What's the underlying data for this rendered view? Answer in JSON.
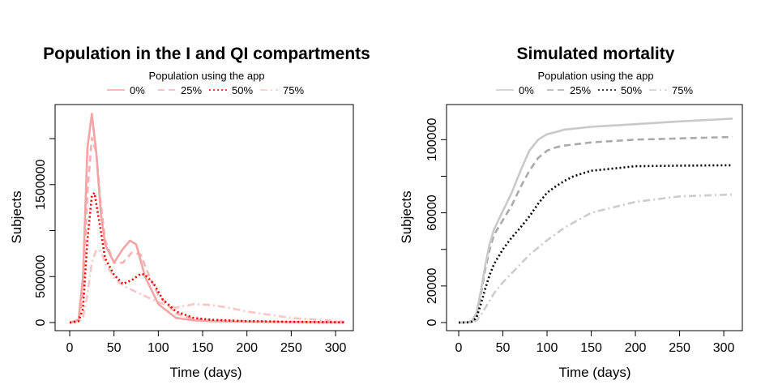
{
  "chart_data": [
    {
      "type": "line",
      "title": "Population in the I and QI compartments",
      "legend_title": "Population using the app",
      "legend_position": "top",
      "xlabel": "Time (days)",
      "ylabel": "Subjects",
      "xlim": [
        0,
        310
      ],
      "ylim": [
        0,
        2300000
      ],
      "x_ticks": [
        0,
        50,
        100,
        150,
        200,
        250,
        300
      ],
      "x_tick_labels": [
        "0",
        "50",
        "100",
        "150",
        "200",
        "250",
        "300"
      ],
      "y_ticks": [
        0,
        500000,
        1000000,
        1500000,
        2000000
      ],
      "y_tick_labels": [
        "0",
        "500000",
        "",
        "1500000",
        ""
      ],
      "grid": false,
      "series": [
        {
          "name": "0%",
          "color": "#f3a4a4",
          "dash": "solid",
          "x": [
            0,
            10,
            15,
            20,
            25,
            30,
            35,
            40,
            50,
            60,
            68,
            75,
            85,
            100,
            120,
            140,
            160,
            200,
            250,
            310
          ],
          "y": [
            0,
            30000,
            500000,
            1900000,
            2270000,
            1850000,
            1200000,
            850000,
            650000,
            800000,
            890000,
            850000,
            500000,
            200000,
            50000,
            25000,
            15000,
            10000,
            5000,
            2000
          ]
        },
        {
          "name": "25%",
          "color": "#f7b3b3",
          "dash": "dashed",
          "x": [
            0,
            10,
            15,
            20,
            25,
            30,
            35,
            40,
            50,
            60,
            70,
            80,
            90,
            100,
            120,
            140,
            160,
            200,
            250,
            310
          ],
          "y": [
            0,
            20000,
            300000,
            1400000,
            2010000,
            1850000,
            1300000,
            900000,
            650000,
            650000,
            760000,
            740000,
            500000,
            300000,
            100000,
            40000,
            25000,
            15000,
            8000,
            3000
          ]
        },
        {
          "name": "50%",
          "color": "#ee0000",
          "dash": "dotted",
          "x": [
            0,
            10,
            15,
            20,
            25,
            28,
            35,
            40,
            50,
            60,
            70,
            80,
            85,
            95,
            105,
            120,
            140,
            160,
            200,
            250,
            310
          ],
          "y": [
            0,
            15000,
            150000,
            900000,
            1380000,
            1410000,
            1000000,
            700000,
            520000,
            420000,
            460000,
            530000,
            520000,
            420000,
            250000,
            120000,
            50000,
            30000,
            15000,
            8000,
            3000
          ]
        },
        {
          "name": "75%",
          "color": "#f9c6c6",
          "dash": "dotdash",
          "x": [
            0,
            10,
            15,
            20,
            25,
            30,
            35,
            40,
            50,
            60,
            80,
            100,
            120,
            140,
            160,
            180,
            200,
            250,
            310
          ],
          "y": [
            0,
            5000,
            50000,
            300000,
            650000,
            790000,
            780000,
            650000,
            490000,
            400000,
            310000,
            220000,
            160000,
            200000,
            190000,
            160000,
            120000,
            50000,
            10000
          ]
        }
      ]
    },
    {
      "type": "line",
      "title": "Simulated mortality",
      "legend_title": "Population using the app",
      "legend_position": "top",
      "xlabel": "Time (days)",
      "ylabel": "Subjects",
      "xlim": [
        0,
        310
      ],
      "ylim": [
        0,
        113000
      ],
      "x_ticks": [
        0,
        50,
        100,
        150,
        200,
        250,
        300
      ],
      "x_tick_labels": [
        "0",
        "50",
        "100",
        "150",
        "200",
        "250",
        "300"
      ],
      "y_ticks": [
        0,
        20000,
        40000,
        60000,
        80000,
        100000
      ],
      "y_tick_labels": [
        "0",
        "20000",
        "",
        "60000",
        "",
        "100000"
      ],
      "grid": false,
      "series": [
        {
          "name": "0%",
          "color": "#c9c9c9",
          "dash": "solid",
          "x": [
            0,
            10,
            15,
            20,
            25,
            30,
            35,
            40,
            50,
            60,
            70,
            80,
            90,
            100,
            110,
            120,
            150,
            200,
            250,
            310
          ],
          "y": [
            0,
            200,
            1000,
            5000,
            17000,
            31000,
            43000,
            51000,
            61000,
            71000,
            83000,
            94000,
            100000,
            103000,
            104200,
            105500,
            107000,
            108500,
            110000,
            111500
          ]
        },
        {
          "name": "25%",
          "color": "#aaaaaa",
          "dash": "dashed",
          "x": [
            0,
            10,
            15,
            20,
            25,
            30,
            35,
            40,
            50,
            60,
            70,
            80,
            90,
            100,
            110,
            120,
            150,
            200,
            250,
            310
          ],
          "y": [
            0,
            150,
            800,
            4000,
            15000,
            29000,
            40000,
            48000,
            56000,
            64000,
            74000,
            83000,
            90000,
            94000,
            95800,
            96800,
            98500,
            100000,
            100700,
            101500
          ]
        },
        {
          "name": "50%",
          "color": "#000000",
          "dash": "dotted",
          "x": [
            0,
            10,
            15,
            20,
            25,
            30,
            35,
            40,
            50,
            60,
            70,
            80,
            90,
            100,
            110,
            120,
            130,
            150,
            200,
            250,
            310
          ],
          "y": [
            0,
            100,
            500,
            2500,
            10000,
            18500,
            26000,
            32000,
            40000,
            46500,
            52000,
            58000,
            65000,
            71000,
            74500,
            77500,
            80000,
            83000,
            85500,
            85800,
            86000
          ]
        },
        {
          "name": "75%",
          "color": "#cccccc",
          "dash": "dotdash",
          "x": [
            0,
            10,
            15,
            20,
            25,
            30,
            35,
            40,
            50,
            60,
            70,
            80,
            90,
            100,
            120,
            150,
            200,
            250,
            310
          ],
          "y": [
            0,
            50,
            200,
            1000,
            4000,
            8000,
            12000,
            16000,
            22000,
            27000,
            32000,
            37000,
            41000,
            45000,
            52000,
            60000,
            66000,
            69000,
            70000
          ]
        }
      ]
    }
  ]
}
